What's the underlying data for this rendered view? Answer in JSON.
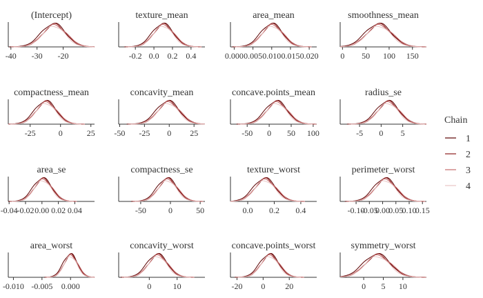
{
  "chart_data": {
    "type": "line",
    "kind": "density",
    "grid": false,
    "legend": {
      "title": "Chain",
      "placement": "right",
      "entries": [
        {
          "label": "1",
          "color": "#5a0000"
        },
        {
          "label": "2",
          "color": "#8b1a1a"
        },
        {
          "label": "3",
          "color": "#c46a6a"
        },
        {
          "label": "4",
          "color": "#e8c4c4"
        }
      ]
    },
    "panels": [
      {
        "title": "(Intercept)",
        "xlim": [
          -41,
          -8
        ],
        "mode": -23.5,
        "sd": 4.5,
        "ticks": [
          {
            "v": -40,
            "label": "-40"
          },
          {
            "v": -30,
            "label": "-30"
          },
          {
            "v": -20,
            "label": "-20"
          }
        ]
      },
      {
        "title": "texture_mean",
        "xlim": [
          -0.38,
          0.55
        ],
        "mode": 0.1,
        "sd": 0.11,
        "ticks": [
          {
            "v": -0.2,
            "label": "-0.2"
          },
          {
            "v": 0.0,
            "label": "0.0"
          },
          {
            "v": 0.2,
            "label": "0.2"
          },
          {
            "v": 0.4,
            "label": "0.4"
          }
        ]
      },
      {
        "title": "area_mean",
        "xlim": [
          -0.001,
          0.022
        ],
        "mode": 0.0101,
        "sd": 0.0028,
        "ticks": [
          {
            "v": 0.0,
            "label": "0.000"
          },
          {
            "v": 0.005,
            "label": "0.005"
          },
          {
            "v": 0.01,
            "label": "0.010"
          },
          {
            "v": 0.015,
            "label": "0.015"
          },
          {
            "v": 0.02,
            "label": "0.020"
          }
        ]
      },
      {
        "title": "smoothness_mean",
        "xlim": [
          -5,
          180
        ],
        "mode": 78,
        "sd": 27,
        "ticks": [
          {
            "v": 0,
            "label": "0"
          },
          {
            "v": 50,
            "label": "50"
          },
          {
            "v": 100,
            "label": "100"
          },
          {
            "v": 150,
            "label": "150"
          }
        ]
      },
      {
        "title": "compactness_mean",
        "xlim": [
          -43,
          28
        ],
        "mode": -12,
        "sd": 8.5,
        "ticks": [
          {
            "v": -25,
            "label": "-25"
          },
          {
            "v": 0,
            "label": "0"
          },
          {
            "v": 25,
            "label": "25"
          }
        ]
      },
      {
        "title": "concavity_mean",
        "xlim": [
          -51,
          36
        ],
        "mode": -1,
        "sd": 11,
        "ticks": [
          {
            "v": -50,
            "label": "-50"
          },
          {
            "v": -25,
            "label": "-25"
          },
          {
            "v": 0,
            "label": "0"
          },
          {
            "v": 25,
            "label": "25"
          }
        ]
      },
      {
        "title": "concave.points_mean",
        "xlim": [
          -88,
          108
        ],
        "mode": 17,
        "sd": 24,
        "ticks": [
          {
            "v": -50,
            "label": "-50"
          },
          {
            "v": 0,
            "label": "0"
          },
          {
            "v": 50,
            "label": "50"
          },
          {
            "v": 100,
            "label": "100"
          }
        ]
      },
      {
        "title": "radius_se",
        "xlim": [
          -9.5,
          10.5
        ],
        "mode": 1.6,
        "sd": 2.5,
        "ticks": [
          {
            "v": -5,
            "label": "-5"
          },
          {
            "v": 0,
            "label": "0"
          },
          {
            "v": 5,
            "label": "5"
          }
        ]
      },
      {
        "title": "area_se",
        "xlim": [
          -0.041,
          0.064
        ],
        "mode": 0.001,
        "sd": 0.011,
        "ticks": [
          {
            "v": -0.04,
            "label": "-0.04"
          },
          {
            "v": -0.02,
            "label": "-0.02"
          },
          {
            "v": 0.0,
            "label": "0.00"
          },
          {
            "v": 0.02,
            "label": "0.02"
          },
          {
            "v": 0.04,
            "label": "0.04"
          }
        ]
      },
      {
        "title": "compactness_se",
        "xlim": [
          -87,
          58
        ],
        "mode": -5,
        "sd": 16,
        "ticks": [
          {
            "v": -50,
            "label": "-50"
          },
          {
            "v": 0,
            "label": "0"
          },
          {
            "v": 50,
            "label": "50"
          }
        ]
      },
      {
        "title": "texture_worst",
        "xlim": [
          -0.13,
          0.52
        ],
        "mode": 0.13,
        "sd": 0.08,
        "ticks": [
          {
            "v": 0.0,
            "label": "0.0"
          },
          {
            "v": 0.2,
            "label": "0.2"
          },
          {
            "v": 0.4,
            "label": "0.4"
          }
        ]
      },
      {
        "title": "perimeter_worst",
        "xlim": [
          -0.16,
          0.165
        ],
        "mode": 0.01,
        "sd": 0.04,
        "ticks": [
          {
            "v": -0.1,
            "label": "-0.10"
          },
          {
            "v": -0.05,
            "label": "-0.05"
          },
          {
            "v": 0.0,
            "label": "0.00"
          },
          {
            "v": 0.05,
            "label": "0.05"
          },
          {
            "v": 0.1,
            "label": "0.10"
          },
          {
            "v": 0.15,
            "label": "0.15"
          }
        ]
      },
      {
        "title": "area_worst",
        "xlim": [
          -0.0109,
          0.0042
        ],
        "mode": 0.0,
        "sd": 0.0012,
        "ticks": [
          {
            "v": -0.01,
            "label": "-0.010"
          },
          {
            "v": -0.005,
            "label": "-0.005"
          },
          {
            "v": 0.0,
            "label": "0.000"
          }
        ]
      },
      {
        "title": "concavity_worst",
        "xlim": [
          -11,
          20
        ],
        "mode": 3,
        "sd": 3.5,
        "ticks": [
          {
            "v": 0,
            "label": "0"
          },
          {
            "v": 10,
            "label": "10"
          }
        ]
      },
      {
        "title": "concave.points_worst",
        "xlim": [
          -25,
          41
        ],
        "mode": 5,
        "sd": 7,
        "ticks": [
          {
            "v": -20,
            "label": "-20"
          },
          {
            "v": 0,
            "label": "0"
          },
          {
            "v": 20,
            "label": "20"
          }
        ]
      },
      {
        "title": "symmetry_worst",
        "xlim": [
          -6,
          16
        ],
        "mode": 3.5,
        "sd": 3.3,
        "ticks": [
          {
            "v": 0,
            "label": "0"
          },
          {
            "v": 5,
            "label": "5"
          },
          {
            "v": 10,
            "label": "10"
          }
        ]
      }
    ]
  }
}
